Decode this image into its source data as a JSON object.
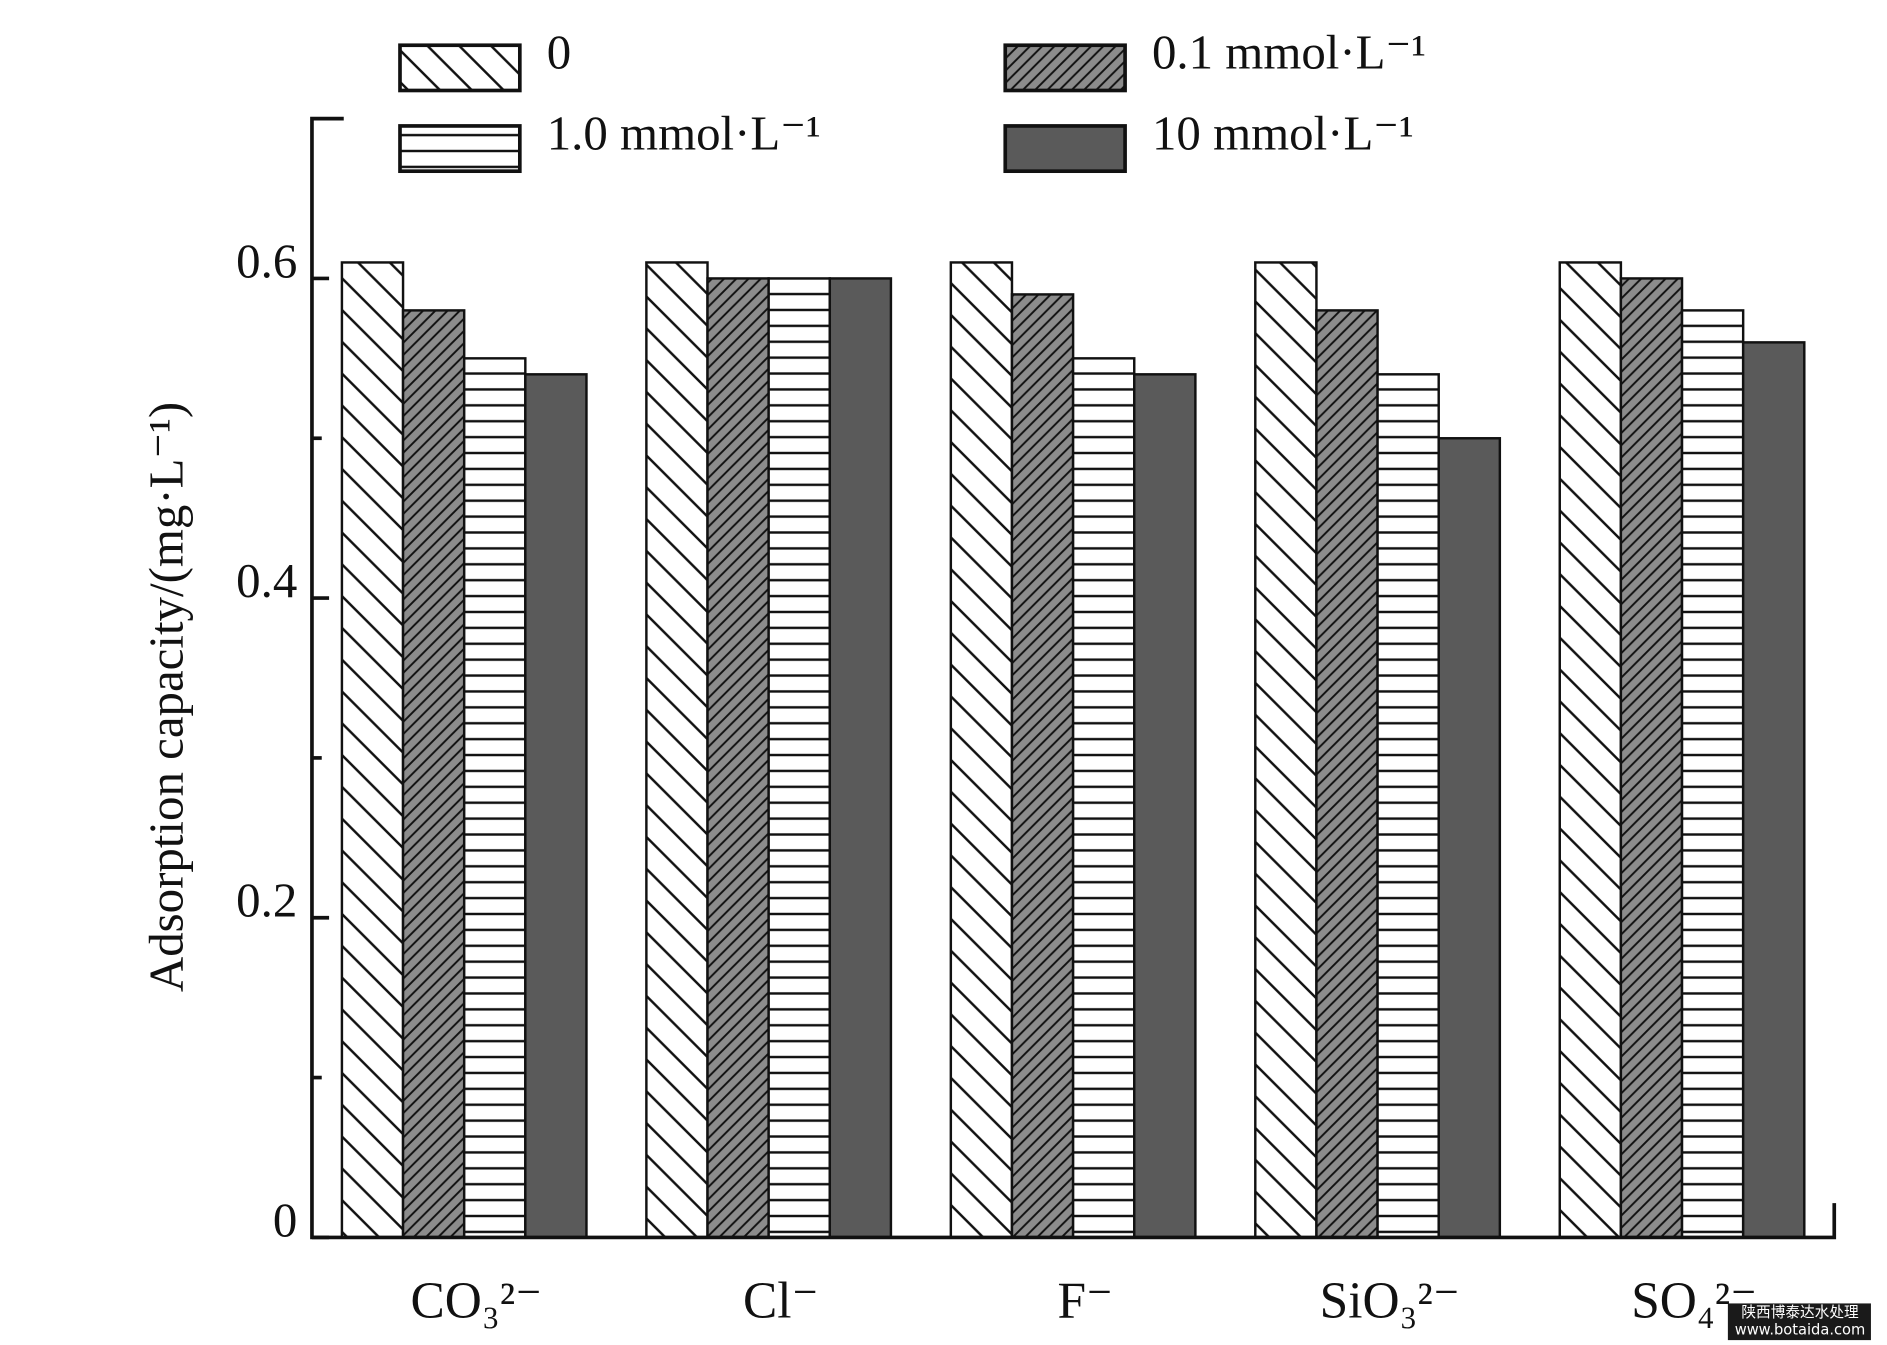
{
  "chart_data": {
    "type": "bar",
    "y_label": "Adsorption capacity/(mg·L⁻¹)",
    "categories": [
      "CO₃²⁻",
      "Cl⁻",
      "F⁻",
      "SiO₃²⁻",
      "SO₄²⁻"
    ],
    "series": [
      {
        "name": "0",
        "color": "#ffffff",
        "hatch": "backslash",
        "values": [
          0.61,
          0.61,
          0.61,
          0.61,
          0.61
        ]
      },
      {
        "name": "0.1 mmol·L⁻¹",
        "color": "#8c8c8c",
        "hatch": "slash",
        "values": [
          0.58,
          0.6,
          0.59,
          0.58,
          0.6
        ]
      },
      {
        "name": "1.0 mmol·L⁻¹",
        "color": "#ffffff",
        "hatch": "horizontal",
        "values": [
          0.55,
          0.6,
          0.55,
          0.54,
          0.58
        ]
      },
      {
        "name": "10 mmol·L⁻¹",
        "color": "#5a5a5a",
        "hatch": "none",
        "values": [
          0.54,
          0.6,
          0.54,
          0.5,
          0.56
        ]
      }
    ],
    "ylim": [
      0,
      0.7
    ],
    "yticks": [
      0,
      0.2,
      0.4,
      0.6
    ],
    "yminorticks": [
      0.1,
      0.3,
      0.5
    ],
    "watermark": [
      "陕西博泰达水处理",
      "www.botaida.com"
    ]
  }
}
